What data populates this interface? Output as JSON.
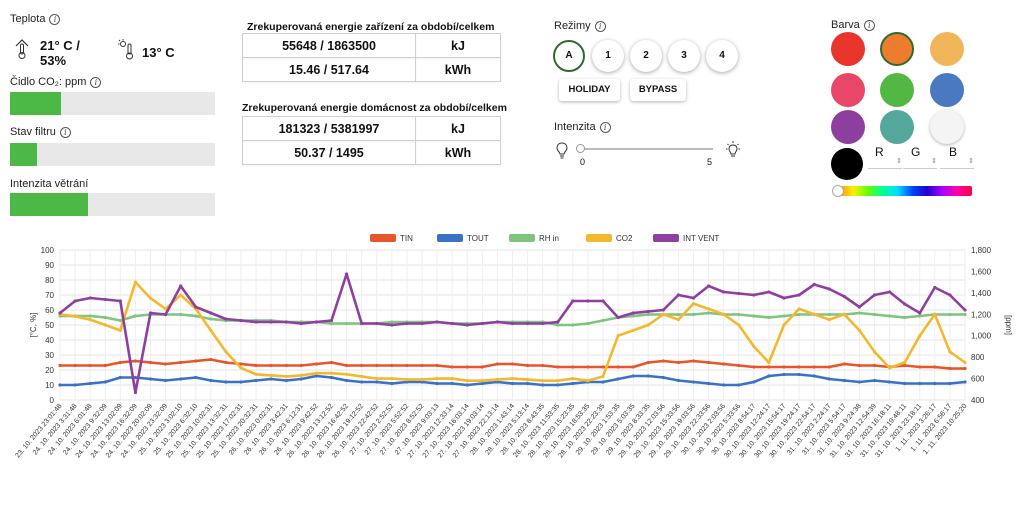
{
  "temperature": {
    "title": "Teplota",
    "indoor": "21° C / 53%",
    "outdoor": "13° C"
  },
  "co2": {
    "title": "Čidlo CO₂: ppm",
    "level": 0.25
  },
  "filter": {
    "title": "Stav filtru",
    "level": 0.13
  },
  "ventilation": {
    "title": "Intenzita větrání",
    "level": 0.38
  },
  "energy_device": {
    "title": "Zrekuperovaná energie zařízení za období/celkem",
    "rows": [
      {
        "value": "55648 / 1863500",
        "unit": "kJ"
      },
      {
        "value": "15.46 / 517.64",
        "unit": "kWh"
      }
    ]
  },
  "energy_home": {
    "title": "Zrekuperovaná energie domácnost za období/celkem",
    "rows": [
      {
        "value": "181323 / 5381997",
        "unit": "kJ"
      },
      {
        "value": "50.37 / 1495",
        "unit": "kWh"
      }
    ]
  },
  "modes": {
    "title": "Režimy",
    "buttons": [
      "A",
      "1",
      "2",
      "3",
      "4"
    ],
    "active": "A",
    "holiday": "HOLIDAY",
    "bypass": "BYPASS"
  },
  "intensity": {
    "title": "Intenzita",
    "min": "0",
    "max": "5",
    "value": 0
  },
  "color": {
    "title": "Barva",
    "swatches": [
      "#e8342a",
      "#ee7c2f",
      "#f1b65a",
      "#e8476a",
      "#52b843",
      "#4a79c1",
      "#8d3fa0",
      "#55a69b",
      "#f4f4f4",
      "#000000"
    ],
    "selected": "#ee7c2f",
    "r_label": "R",
    "g_label": "G",
    "b_label": "B"
  },
  "chart_data": {
    "type": "line",
    "series": [
      {
        "name": "TIN",
        "color": "#e8552a",
        "axis": "left",
        "values": [
          23,
          23,
          23,
          23,
          25,
          26,
          25,
          24,
          25,
          26,
          27,
          25,
          24,
          23,
          23,
          23,
          23,
          24,
          25,
          23,
          23,
          23,
          23,
          23,
          23,
          23,
          22,
          22,
          22,
          24,
          24,
          23,
          23,
          22,
          22,
          22,
          22,
          22,
          22,
          25,
          26,
          25,
          26,
          25,
          24,
          23,
          22,
          22,
          22,
          22,
          22,
          22,
          24,
          23,
          23,
          22,
          23,
          22,
          22,
          21,
          21
        ]
      },
      {
        "name": "TOUT",
        "color": "#3a72c8",
        "axis": "left",
        "values": [
          10,
          10,
          11,
          12,
          15,
          15,
          14,
          13,
          14,
          15,
          13,
          12,
          12,
          13,
          14,
          13,
          14,
          16,
          15,
          13,
          12,
          12,
          11,
          12,
          12,
          11,
          11,
          10,
          11,
          12,
          11,
          11,
          10,
          10,
          11,
          12,
          12,
          14,
          16,
          16,
          15,
          13,
          12,
          11,
          10,
          10,
          12,
          16,
          17,
          17,
          16,
          14,
          13,
          12,
          13,
          12,
          11,
          11,
          11,
          11,
          12
        ]
      },
      {
        "name": "RH in",
        "color": "#7fc47f",
        "axis": "left",
        "values": [
          56,
          56,
          56,
          55,
          53,
          56,
          57,
          57,
          57,
          56,
          54,
          53,
          53,
          53,
          53,
          52,
          52,
          52,
          51,
          51,
          51,
          51,
          52,
          52,
          52,
          52,
          51,
          51,
          51,
          52,
          52,
          52,
          52,
          50,
          50,
          51,
          53,
          55,
          56,
          57,
          57,
          57,
          57,
          58,
          57,
          57,
          56,
          55,
          56,
          57,
          57,
          57,
          57,
          58,
          57,
          56,
          55,
          56,
          57,
          57,
          57
        ]
      },
      {
        "name": "CO2",
        "color": "#f3b82e",
        "axis": "right",
        "values": [
          1200,
          1180,
          1150,
          1100,
          1050,
          1500,
          1350,
          1250,
          1380,
          1250,
          1050,
          850,
          700,
          640,
          630,
          620,
          630,
          650,
          650,
          640,
          620,
          600,
          600,
          590,
          590,
          600,
          600,
          580,
          580,
          590,
          600,
          590,
          580,
          580,
          600,
          580,
          620,
          1000,
          1050,
          1100,
          1200,
          1150,
          1300,
          1250,
          1200,
          1100,
          900,
          750,
          1100,
          1250,
          1200,
          1150,
          1200,
          1050,
          850,
          700,
          750,
          1000,
          1200,
          850,
          750
        ]
      },
      {
        "name": "INT VENT",
        "color": "#8f3fa0",
        "axis": "left",
        "values": [
          58,
          66,
          68,
          67,
          66,
          5,
          58,
          57,
          76,
          62,
          58,
          54,
          53,
          52,
          52,
          52,
          51,
          52,
          53,
          84,
          51,
          51,
          50,
          51,
          51,
          52,
          51,
          50,
          51,
          52,
          51,
          51,
          51,
          52,
          66,
          66,
          66,
          55,
          58,
          59,
          60,
          70,
          68,
          76,
          72,
          71,
          70,
          72,
          68,
          70,
          77,
          74,
          69,
          62,
          70,
          72,
          64,
          58,
          75,
          70,
          60
        ]
      }
    ],
    "ylabel_left": "[°C, %]",
    "ylabel_right": "[ppm]",
    "ylim_left": [
      0,
      100
    ],
    "ylim_right": [
      400,
      1800
    ],
    "yticks_left": [
      "0",
      "10",
      "20",
      "30",
      "40",
      "50",
      "60",
      "70",
      "80",
      "90",
      "100"
    ],
    "yticks_right": [
      "400",
      "600",
      "800",
      "1,000",
      "1,200",
      "1,400",
      "1,600",
      "1,800"
    ],
    "x_labels": [
      "23. 10. 2023 23:01:48",
      "24. 10. 2023 3:31:48",
      "24. 10. 2023 6:01:48",
      "24. 10. 2023 9:32:09",
      "24. 10. 2023 13:02:09",
      "24. 10. 2023 16:32:09",
      "24. 10. 2023 20:02:09",
      "24. 10. 2023 23:32:09",
      "25. 10. 2023 3:02:10",
      "25. 10. 2023 6:32:10",
      "25. 10. 2023 10:02:31",
      "25. 10. 2023 13:32:31",
      "25. 10. 2023 17:02:31",
      "25. 10. 2023 20:32:31",
      "26. 10. 2023 0:02:31",
      "26. 10. 2023 3:42:31",
      "26. 10. 2023 6:12:31",
      "26. 10. 2023 9:42:52",
      "26. 10. 2023 13:12:52",
      "26. 10. 2023 16:42:52",
      "26. 10. 2023 19:12:52",
      "26. 10. 2023 22:42:52",
      "27. 10. 2023 2:52:52",
      "27. 10. 2023 5:52:52",
      "27. 10. 2023 8:52:52",
      "27. 10. 2023 9:03:13",
      "27. 10. 2023 12:33:14",
      "27. 10. 2023 16:03:14",
      "27. 10. 2023 19:03:14",
      "27. 10. 2023 22:13:14",
      "28. 10. 2023 1:43:14",
      "28. 10. 2023 5:13:14",
      "28. 10. 2023 8:43:35",
      "28. 10. 2023 11:53:35",
      "28. 10. 2023 15:23:35",
      "28. 10. 2023 18:53:35",
      "28. 10. 2023 22:23:35",
      "29. 10. 2023 1:53:35",
      "29. 10. 2023 5:03:35",
      "29. 10. 2023 8:33:35",
      "29. 10. 2023 12:03:56",
      "29. 10. 2023 15:33:56",
      "29. 10. 2023 19:03:56",
      "29. 10. 2023 22:33:56",
      "30. 10. 2023 2:03:56",
      "30. 10. 2023 5:33:56",
      "30. 10. 2023 8:54:17",
      "30. 10. 2023 12:24:17",
      "30. 10. 2023 15:54:17",
      "30. 10. 2023 19:24:17",
      "30. 10. 2023 22:54:17",
      "31. 10. 2023 2:24:17",
      "31. 10. 2023 5:54:17",
      "31. 10. 2023 9:24:38",
      "31. 10. 2023 12:54:39",
      "31. 10. 2023 16:18:11",
      "31. 10. 2023 19:48:11",
      "31. 10. 2023 23:18:11",
      "1. 11. 2023 3:26:17",
      "1. 11. 2023 6:56:17",
      "1. 11. 2023 10:25:20"
    ],
    "grid": true,
    "legend": "top-center"
  }
}
